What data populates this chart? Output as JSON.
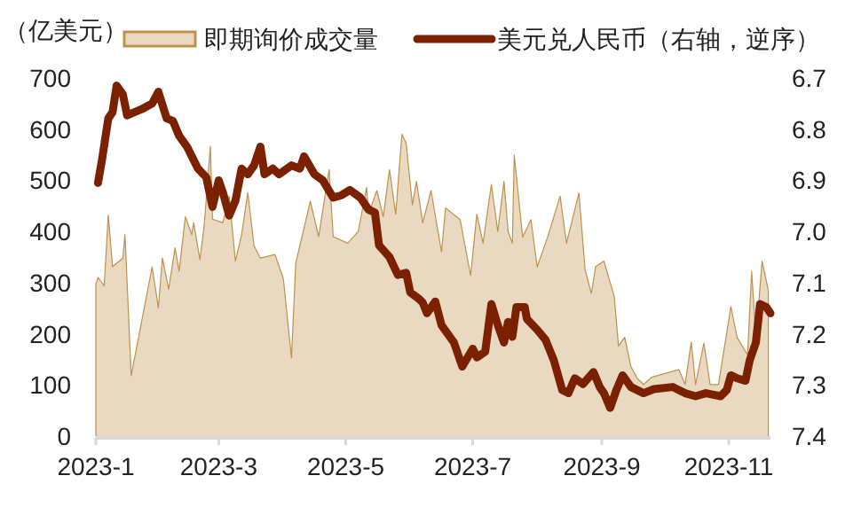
{
  "chart_data": {
    "type": "area",
    "ylabel": "（亿美元）",
    "legend": "top",
    "grid": false,
    "xlim": [
      "2023-01-01",
      "2023-11-21"
    ],
    "xticks": [
      {
        "value": "2023-01-01",
        "label": "2023-1"
      },
      {
        "value": "2023-03-01",
        "label": "2023-3"
      },
      {
        "value": "2023-05-01",
        "label": "2023-5"
      },
      {
        "value": "2023-07-01",
        "label": "2023-7"
      },
      {
        "value": "2023-09-01",
        "label": "2023-9"
      },
      {
        "value": "2023-11-01",
        "label": "2023-11"
      }
    ],
    "ylim": [
      0,
      700
    ],
    "yticks": [
      0,
      100,
      200,
      300,
      400,
      500,
      600,
      700
    ],
    "y2lim": [
      7.4,
      6.7
    ],
    "y2ticks": [
      6.7,
      6.8,
      6.9,
      {
        "value": 7,
        "label": "7.0"
      },
      7.1,
      7.2,
      7.3,
      7.4
    ],
    "series": [
      {
        "name": "即期询价成交量",
        "color": "#c0914d",
        "x": [
          "2023-01-01",
          "2023-01-02",
          "2023-01-05",
          "2023-01-07",
          "2023-01-09",
          "2023-01-11",
          "2023-01-14",
          "2023-01-15",
          "2023-01-18",
          "2023-01-28",
          "2023-01-31",
          "2023-02-02",
          "2023-02-05",
          "2023-02-08",
          "2023-02-10",
          "2023-02-13",
          "2023-02-16",
          "2023-02-17",
          "2023-02-20",
          "2023-02-22",
          "2023-02-25",
          "2023-02-26",
          "2023-03-03",
          "2023-03-06",
          "2023-03-09",
          "2023-03-12",
          "2023-03-15",
          "2023-03-18",
          "2023-03-21",
          "2023-03-28",
          "2023-04-01",
          "2023-04-05",
          "2023-04-07",
          "2023-04-14",
          "2023-04-18",
          "2023-04-23",
          "2023-04-25",
          "2023-05-02",
          "2023-05-07",
          "2023-05-11",
          "2023-05-12",
          "2023-05-16",
          "2023-05-19",
          "2023-05-22",
          "2023-05-25",
          "2023-05-28",
          "2023-05-30",
          "2023-06-02",
          "2023-06-04",
          "2023-06-07",
          "2023-06-11",
          "2023-06-16",
          "2023-06-18",
          "2023-06-25",
          "2023-06-30",
          "2023-07-03",
          "2023-07-06",
          "2023-07-10",
          "2023-07-13",
          "2023-07-16",
          "2023-07-18",
          "2023-07-20",
          "2023-07-21",
          "2023-07-25",
          "2023-07-29",
          "2023-08-01",
          "2023-08-06",
          "2023-08-12",
          "2023-08-15",
          "2023-08-21",
          "2023-08-24",
          "2023-08-27",
          "2023-08-29",
          "2023-09-02",
          "2023-09-07",
          "2023-09-09",
          "2023-09-12",
          "2023-09-15",
          "2023-09-18",
          "2023-09-21",
          "2023-09-25",
          "2023-10-08",
          "2023-10-11",
          "2023-10-14",
          "2023-10-16",
          "2023-10-20",
          "2023-10-23",
          "2023-10-27",
          "2023-11-02",
          "2023-11-05",
          "2023-11-10",
          "2023-11-12",
          "2023-11-14",
          "2023-11-17",
          "2023-11-20"
        ],
        "values": [
          297,
          310,
          294,
          432,
          331,
          338,
          348,
          394,
          118,
          331,
          251,
          348,
          287,
          368,
          322,
          429,
          394,
          417,
          345,
          411,
          567,
          424,
          417,
          469,
          342,
          394,
          476,
          372,
          348,
          355,
          308,
          153,
          338,
          459,
          390,
          521,
          390,
          377,
          400,
          486,
          434,
          480,
          429,
          521,
          434,
          590,
          572,
          452,
          498,
          417,
          480,
          360,
          446,
          423,
          314,
          434,
          377,
          492,
          400,
          498,
          400,
          377,
          549,
          389,
          423,
          331,
          389,
          469,
          377,
          475,
          325,
          279,
          331,
          342,
          273,
          176,
          193,
          136,
          113,
          101,
          115,
          130,
          101,
          184,
          101,
          182,
          101,
          101,
          253,
          193,
          159,
          322,
          193,
          342,
          285
        ]
      },
      {
        "name": "美元兑人民币（右轴，逆序）",
        "type": "line",
        "axis": "y2",
        "color": "#7b2100",
        "x": [
          "2023-01-02",
          "2023-01-04",
          "2023-01-07",
          "2023-01-09",
          "2023-01-11",
          "2023-01-14",
          "2023-01-16",
          "2023-01-23",
          "2023-01-28",
          "2023-01-31",
          "2023-02-04",
          "2023-02-07",
          "2023-02-10",
          "2023-02-14",
          "2023-02-19",
          "2023-02-23",
          "2023-02-26",
          "2023-03-01",
          "2023-03-03",
          "2023-03-06",
          "2023-03-09",
          "2023-03-12",
          "2023-03-15",
          "2023-03-18",
          "2023-03-21",
          "2023-03-23",
          "2023-03-27",
          "2023-03-30",
          "2023-04-05",
          "2023-04-09",
          "2023-04-11",
          "2023-04-16",
          "2023-04-20",
          "2023-04-25",
          "2023-04-29",
          "2023-05-03",
          "2023-05-08",
          "2023-05-12",
          "2023-05-15",
          "2023-05-17",
          "2023-05-22",
          "2023-05-26",
          "2023-05-30",
          "2023-06-01",
          "2023-06-05",
          "2023-06-07",
          "2023-06-09",
          "2023-06-13",
          "2023-06-16",
          "2023-06-22",
          "2023-06-26",
          "2023-07-01",
          "2023-07-03",
          "2023-07-07",
          "2023-07-10",
          "2023-07-13",
          "2023-07-16",
          "2023-07-18",
          "2023-07-20",
          "2023-07-22",
          "2023-07-26",
          "2023-07-27",
          "2023-08-01",
          "2023-08-05",
          "2023-08-09",
          "2023-08-13",
          "2023-08-16",
          "2023-08-19",
          "2023-08-23",
          "2023-08-28",
          "2023-08-31",
          "2023-09-02",
          "2023-09-05",
          "2023-09-08",
          "2023-09-11",
          "2023-09-15",
          "2023-09-21",
          "2023-09-26",
          "2023-10-05",
          "2023-10-11",
          "2023-10-16",
          "2023-10-21",
          "2023-10-28",
          "2023-10-31",
          "2023-11-02",
          "2023-11-05",
          "2023-11-09",
          "2023-11-11",
          "2023-11-14",
          "2023-11-16",
          "2023-11-19",
          "2023-11-21"
        ],
        "values": [
          6.905,
          6.859,
          6.779,
          6.767,
          6.715,
          6.732,
          6.773,
          6.761,
          6.75,
          6.727,
          6.779,
          6.784,
          6.813,
          6.836,
          6.877,
          6.894,
          6.952,
          6.9,
          6.923,
          6.969,
          6.94,
          6.877,
          6.888,
          6.871,
          6.834,
          6.888,
          6.877,
          6.888,
          6.871,
          6.877,
          6.853,
          6.888,
          6.9,
          6.934,
          6.929,
          6.919,
          6.934,
          6.957,
          6.963,
          7.027,
          7.05,
          7.085,
          7.081,
          7.119,
          7.131,
          7.139,
          7.16,
          7.137,
          7.183,
          7.217,
          7.264,
          7.229,
          7.246,
          7.235,
          7.142,
          7.183,
          7.217,
          7.177,
          7.206,
          7.148,
          7.148,
          7.171,
          7.192,
          7.212,
          7.252,
          7.31,
          7.316,
          7.287,
          7.298,
          7.275,
          7.304,
          7.316,
          7.345,
          7.31,
          7.281,
          7.304,
          7.316,
          7.308,
          7.304,
          7.316,
          7.322,
          7.316,
          7.322,
          7.31,
          7.281,
          7.287,
          7.292,
          7.252,
          7.217,
          7.142,
          7.148,
          7.16
        ]
      }
    ]
  }
}
